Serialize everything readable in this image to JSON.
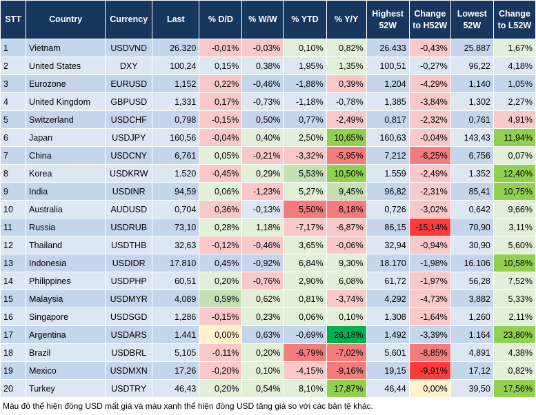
{
  "table": {
    "headers": [
      "STT",
      "Country",
      "Currency",
      "Last",
      "% D/D",
      "% W/W",
      "% YTD",
      "% Y/Y",
      "Highest 52W",
      "Change to H52W",
      "Lowest 52W",
      "Change to L52W"
    ],
    "rows": [
      [
        "1",
        "Vietnam",
        "USDVND",
        "26.320",
        "-0,01%",
        "-0,03%",
        "0,10%",
        "0,82%",
        "26.433",
        "-0,43%",
        "25.887",
        "1,67%"
      ],
      [
        "2",
        "United States",
        "DXY",
        "100,24",
        "0,15%",
        "0,38%",
        "1,95%",
        "1,35%",
        "100,51",
        "-0,27%",
        "96,22",
        "4,18%"
      ],
      [
        "3",
        "Eurozone",
        "EURUSD",
        "1,152",
        "0,22%",
        "-0,46%",
        "-1,88%",
        "0,39%",
        "1,204",
        "-4,29%",
        "1,140",
        "1,05%"
      ],
      [
        "4",
        "United Kingdom",
        "GBPUSD",
        "1,331",
        "0,17%",
        "-0,73%",
        "-1,18%",
        "-0,78%",
        "1,385",
        "-3,84%",
        "1,302",
        "2,27%"
      ],
      [
        "5",
        "Switzerland",
        "USDCHF",
        "0,798",
        "-0,15%",
        "0,50%",
        "0,77%",
        "-2,49%",
        "0,817",
        "-2,32%",
        "0,761",
        "4,91%"
      ],
      [
        "6",
        "Japan",
        "USDJPY",
        "160,56",
        "-0,04%",
        "0,40%",
        "2,50%",
        "10,65%",
        "160,63",
        "-0,04%",
        "143,43",
        "11,94%"
      ],
      [
        "7",
        "China",
        "USDCNY",
        "6,761",
        "0,05%",
        "-0,21%",
        "-3,32%",
        "-5,95%",
        "7,212",
        "-6,25%",
        "6,756",
        "0,07%"
      ],
      [
        "8",
        "Korea",
        "USDKRW",
        "1.520",
        "-0,45%",
        "0,29%",
        "5,53%",
        "10,50%",
        "1.559",
        "-2,49%",
        "1.352",
        "12,40%"
      ],
      [
        "9",
        "India",
        "USDINR",
        "94,59",
        "0,06%",
        "-1,23%",
        "5,27%",
        "9,45%",
        "96,82",
        "-2,31%",
        "85,41",
        "10,75%"
      ],
      [
        "10",
        "Australia",
        "AUDUSD",
        "0,704",
        "0,36%",
        "-0,13%",
        "5,50%",
        "8,18%",
        "0,726",
        "-3,02%",
        "0,642",
        "9,66%"
      ],
      [
        "11",
        "Russia",
        "USDRUB",
        "73,10",
        "0,28%",
        "1,18%",
        "-7,17%",
        "-6,87%",
        "86,15",
        "-15,14%",
        "70,90",
        "3,11%"
      ],
      [
        "12",
        "Thailand",
        "USDTHB",
        "32,63",
        "-0,12%",
        "-0,46%",
        "3,65%",
        "-0,06%",
        "32,94",
        "-0,94%",
        "30,90",
        "5,60%"
      ],
      [
        "13",
        "Indonesia",
        "USDIDR",
        "17.810",
        "0,45%",
        "-0,92%",
        "6,84%",
        "9,30%",
        "18.170",
        "-1,98%",
        "16.106",
        "10,58%"
      ],
      [
        "14",
        "Philippines",
        "USDPHP",
        "60,51",
        "0,20%",
        "-0,76%",
        "2,90%",
        "6,08%",
        "61,72",
        "-1,97%",
        "56,28",
        "7,52%"
      ],
      [
        "15",
        "Malaysia",
        "USDMYR",
        "4,089",
        "0,59%",
        "0,62%",
        "0,81%",
        "-3,74%",
        "4,292",
        "-4,73%",
        "3,882",
        "5,33%"
      ],
      [
        "16",
        "Singapore",
        "USDSGD",
        "1,286",
        "-0,15%",
        "0,23%",
        "0,06%",
        "0,10%",
        "1,308",
        "-1,64%",
        "1,260",
        "2,11%"
      ],
      [
        "17",
        "Argentina",
        "USDARS",
        "1.441",
        "0,00%",
        "0,63%",
        "-0,69%",
        "26,18%",
        "1.492",
        "-3,39%",
        "1.164",
        "23,80%"
      ],
      [
        "18",
        "Brazil",
        "USDBRL",
        "5,105",
        "-0,11%",
        "0,20%",
        "-6,79%",
        "-7,02%",
        "5,601",
        "-8,85%",
        "4,891",
        "4,38%"
      ],
      [
        "19",
        "Mexico",
        "USDMXN",
        "17,26",
        "-0,20%",
        "0,10%",
        "-4,15%",
        "-9,16%",
        "19,15",
        "-9,91%",
        "17,12",
        "0,82%"
      ],
      [
        "20",
        "Turkey",
        "USDTRY",
        "46,43",
        "0,20%",
        "0,54%",
        "8,10%",
        "17,87%",
        "46,44",
        "0,00%",
        "39,50",
        "17,56%"
      ]
    ]
  },
  "footer": {
    "note": "Màu đỏ thể hiện đồng USD mất giá và màu xanh thể hiện đồng USD tăng giá so với các bản tệ khác."
  }
}
